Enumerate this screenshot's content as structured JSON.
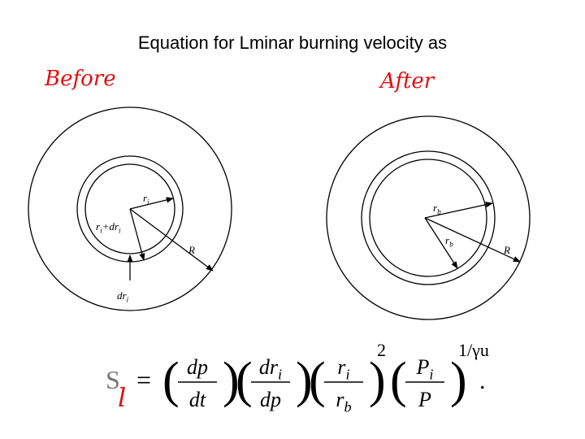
{
  "header": {
    "title": "Equation for Lminar burning velocity as"
  },
  "annotations": {
    "before": "Before",
    "after": "After"
  },
  "diagrams": [
    {
      "labels": [
        {
          "t": "r",
          "s": "i"
        },
        {
          "t": "r",
          "s": "i",
          "plus": "+dr",
          "s2": "i"
        },
        {
          "t": "R"
        },
        {
          "t": "dr",
          "s": "i"
        }
      ]
    },
    {
      "labels": [
        {
          "t": "r",
          "s": "b"
        },
        {
          "t": "r",
          "s": "b"
        },
        {
          "t": "R"
        }
      ]
    }
  ],
  "equation": {
    "lhs": "S",
    "sub": "l",
    "eq": "=",
    "fractions": [
      {
        "num": {
          "t": "dp"
        },
        "den": {
          "t": "dt"
        }
      },
      {
        "num": {
          "t": "dr",
          "s": "i"
        },
        "den": {
          "t": "dp"
        }
      },
      {
        "num": {
          "t": "r",
          "s": "i"
        },
        "den": {
          "t": "r",
          "s": "b"
        },
        "exp": "2"
      },
      {
        "num": {
          "t": "P",
          "s": "i"
        },
        "den": {
          "t": "P"
        },
        "exp": "1/γu"
      }
    ]
  }
}
